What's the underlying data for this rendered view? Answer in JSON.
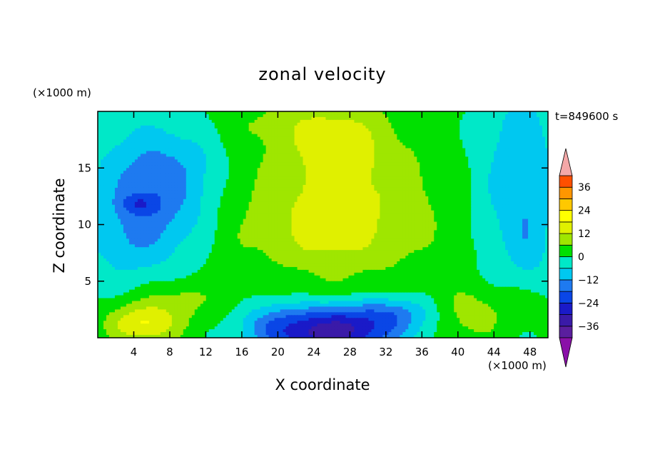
{
  "chart_data": {
    "type": "heatmap",
    "title": "zonal velocity",
    "xlabel": "X coordinate",
    "ylabel": "Z coordinate",
    "x_unit_label": "(×1000 m)",
    "y_unit_label": "(×1000 m)",
    "time_label": "t=849600 s",
    "xlim": [
      0,
      50
    ],
    "ylim": [
      0,
      20
    ],
    "x_ticks": [
      4,
      8,
      12,
      16,
      20,
      24,
      28,
      32,
      36,
      40,
      44,
      48
    ],
    "y_ticks": [
      5,
      10,
      15
    ],
    "colorbar": {
      "levels": [
        -42,
        -36,
        -30,
        -24,
        -18,
        -12,
        -6,
        0,
        6,
        12,
        18,
        24,
        30,
        36,
        42
      ],
      "tick_labels": [
        "36",
        "24",
        "12",
        "0",
        "−12",
        "−24",
        "−36"
      ],
      "tick_values": [
        36,
        24,
        12,
        0,
        -12,
        -24,
        -36
      ],
      "colors": [
        "#5a1e9e",
        "#3a1aa8",
        "#1a1ac8",
        "#0a46e6",
        "#1e7af0",
        "#00c8f0",
        "#00e8c8",
        "#00e000",
        "#9fe600",
        "#e0f000",
        "#ffff00",
        "#ffc800",
        "#ff9600",
        "#ff5000",
        "#f01e1e"
      ],
      "under_color": "#8a10a8",
      "over_color": "#f4a8a8"
    },
    "field_features": [
      {
        "x": 26,
        "z": 0.6,
        "value": -30
      },
      {
        "x": 5,
        "z": 11.5,
        "value": -20
      },
      {
        "x": 26,
        "z": 11,
        "value": 20
      },
      {
        "x": 5,
        "z": 1,
        "value": 13
      }
    ]
  }
}
